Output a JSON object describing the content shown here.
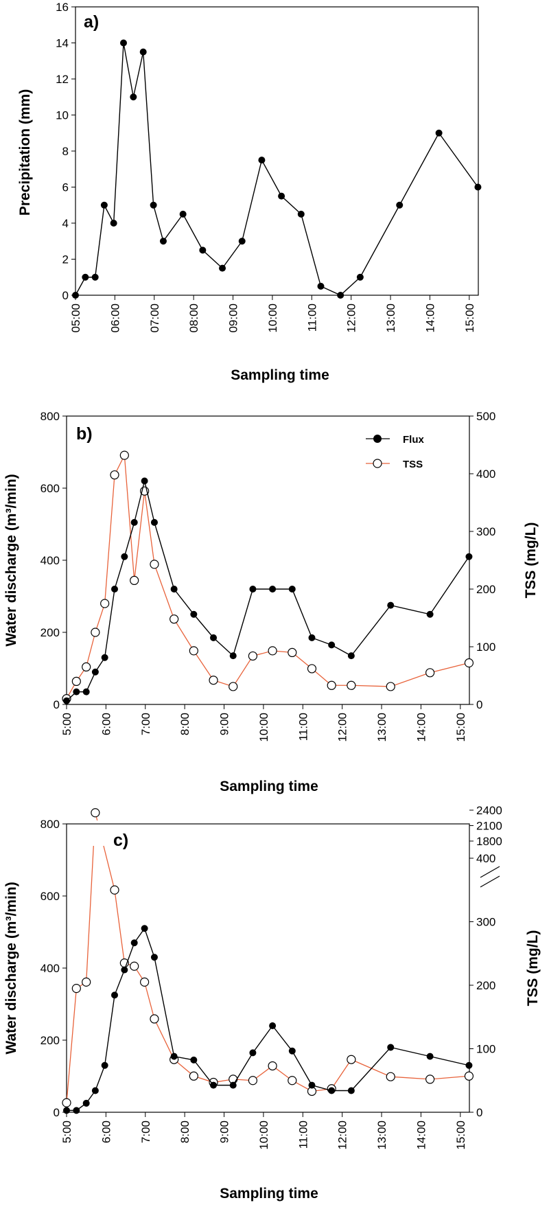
{
  "chart_data": [
    {
      "id": "a",
      "type": "line",
      "panel_label": "a)",
      "xlabel": "Sampling time",
      "ylabel": "Precipitation (mm)",
      "ylim": [
        0,
        16
      ],
      "yticks": [
        "0",
        "2",
        "4",
        "6",
        "8",
        "10",
        "12",
        "14",
        "16"
      ],
      "xlim": [
        5.0,
        15.23
      ],
      "xticks": [
        "05:00",
        "06:00",
        "07:00",
        "08:00",
        "09:00",
        "10:00",
        "11:00",
        "12:00",
        "13:00",
        "14:00",
        "15:00"
      ],
      "series": [
        {
          "name": "Precipitation",
          "color": "#000000",
          "marker": "filled-circle",
          "x": [
            5.0,
            5.25,
            5.5,
            5.73,
            5.97,
            6.22,
            6.47,
            6.72,
            6.98,
            7.23,
            7.73,
            8.23,
            8.73,
            9.23,
            9.73,
            10.23,
            10.73,
            11.23,
            11.73,
            12.23,
            13.23,
            14.23,
            15.22
          ],
          "values": [
            0,
            1,
            1,
            5,
            4,
            14,
            11,
            13.5,
            5,
            3,
            4.5,
            2.5,
            1.5,
            3,
            7.5,
            5.5,
            4.5,
            0.5,
            0,
            1,
            5,
            9,
            6
          ]
        }
      ]
    },
    {
      "id": "b",
      "type": "line",
      "panel_label": "b)",
      "xlabel": "Sampling time",
      "ylabel": "Water discharge (m³/min)",
      "ylabel2": "TSS (mg/L)",
      "ylim": [
        0,
        800
      ],
      "yticks": [
        "0",
        "200",
        "400",
        "600",
        "800"
      ],
      "y2lim": [
        0,
        500
      ],
      "y2ticks": [
        "0",
        "100",
        "200",
        "300",
        "400",
        "500"
      ],
      "xlim": [
        5.0,
        15.23
      ],
      "xticks": [
        "5:00",
        "6:00",
        "7:00",
        "8:00",
        "9:00",
        "10:00",
        "11:00",
        "12:00",
        "13:00",
        "14:00",
        "15:00"
      ],
      "legend": [
        "Flux",
        "TSS"
      ],
      "series": [
        {
          "name": "Flux",
          "axis": "left",
          "color": "#000000",
          "marker": "filled-circle",
          "x": [
            5.0,
            5.25,
            5.5,
            5.73,
            5.97,
            6.22,
            6.47,
            6.72,
            6.98,
            7.23,
            7.73,
            8.23,
            8.73,
            9.23,
            9.73,
            10.23,
            10.73,
            11.23,
            11.73,
            12.23,
            13.23,
            14.23,
            15.22
          ],
          "values": [
            10,
            35,
            35,
            90,
            130,
            320,
            410,
            505,
            620,
            505,
            320,
            250,
            185,
            135,
            320,
            320,
            320,
            185,
            165,
            135,
            275,
            250,
            410
          ]
        },
        {
          "name": "TSS",
          "axis": "right",
          "color": "#e8623a",
          "marker": "open-circle",
          "x": [
            5.0,
            5.25,
            5.5,
            5.73,
            5.97,
            6.22,
            6.47,
            6.72,
            6.98,
            7.23,
            7.73,
            8.23,
            8.73,
            9.23,
            9.73,
            10.23,
            10.73,
            11.23,
            11.73,
            12.23,
            13.23,
            14.23,
            15.22
          ],
          "values": [
            10,
            40,
            65,
            125,
            175,
            398,
            432,
            215,
            370,
            243,
            148,
            93,
            42,
            31,
            84,
            93,
            90,
            62,
            33,
            33,
            31,
            55,
            72
          ]
        }
      ]
    },
    {
      "id": "c",
      "type": "line",
      "panel_label": "c)",
      "xlabel": "Sampling time",
      "ylabel": "Water discharge (m³/min)",
      "ylabel2": "TSS (mg/L)",
      "ylim": [
        0,
        800
      ],
      "yticks": [
        "0",
        "200",
        "400",
        "600",
        "800"
      ],
      "y2_note": "broken right axis: 0–400 linear, break, then 1800–2400",
      "y2ticks": [
        "0",
        "100",
        "200",
        "300",
        "400",
        "1800",
        "2100",
        "2400"
      ],
      "xlim": [
        5.0,
        15.23
      ],
      "xticks": [
        "5:00",
        "6:00",
        "7:00",
        "8:00",
        "9:00",
        "10:00",
        "11:00",
        "12:00",
        "13:00",
        "14:00",
        "15:00"
      ],
      "series": [
        {
          "name": "Flux",
          "axis": "left",
          "color": "#000000",
          "marker": "filled-circle",
          "x": [
            5.0,
            5.25,
            5.5,
            5.73,
            5.97,
            6.22,
            6.47,
            6.72,
            6.98,
            7.23,
            7.73,
            8.23,
            8.73,
            9.23,
            9.73,
            10.23,
            10.73,
            11.23,
            11.73,
            12.23,
            13.23,
            14.23,
            15.22
          ],
          "values": [
            5,
            5,
            25,
            60,
            130,
            325,
            395,
            470,
            510,
            430,
            155,
            145,
            75,
            75,
            165,
            240,
            170,
            75,
            60,
            60,
            180,
            155,
            130
          ]
        },
        {
          "name": "TSS",
          "axis": "right",
          "color": "#e8623a",
          "marker": "open-circle",
          "x": [
            5.0,
            5.25,
            5.5,
            5.73,
            6.22,
            6.47,
            6.72,
            6.98,
            7.23,
            7.73,
            8.23,
            8.73,
            9.23,
            9.73,
            10.23,
            10.73,
            11.23,
            11.73,
            12.23,
            13.23,
            14.23,
            15.22
          ],
          "values": [
            15,
            195,
            205,
            2350,
            350,
            235,
            230,
            205,
            147,
            83,
            57,
            47,
            52,
            50,
            73,
            50,
            33,
            37,
            83,
            56,
            52,
            57
          ]
        }
      ]
    }
  ]
}
